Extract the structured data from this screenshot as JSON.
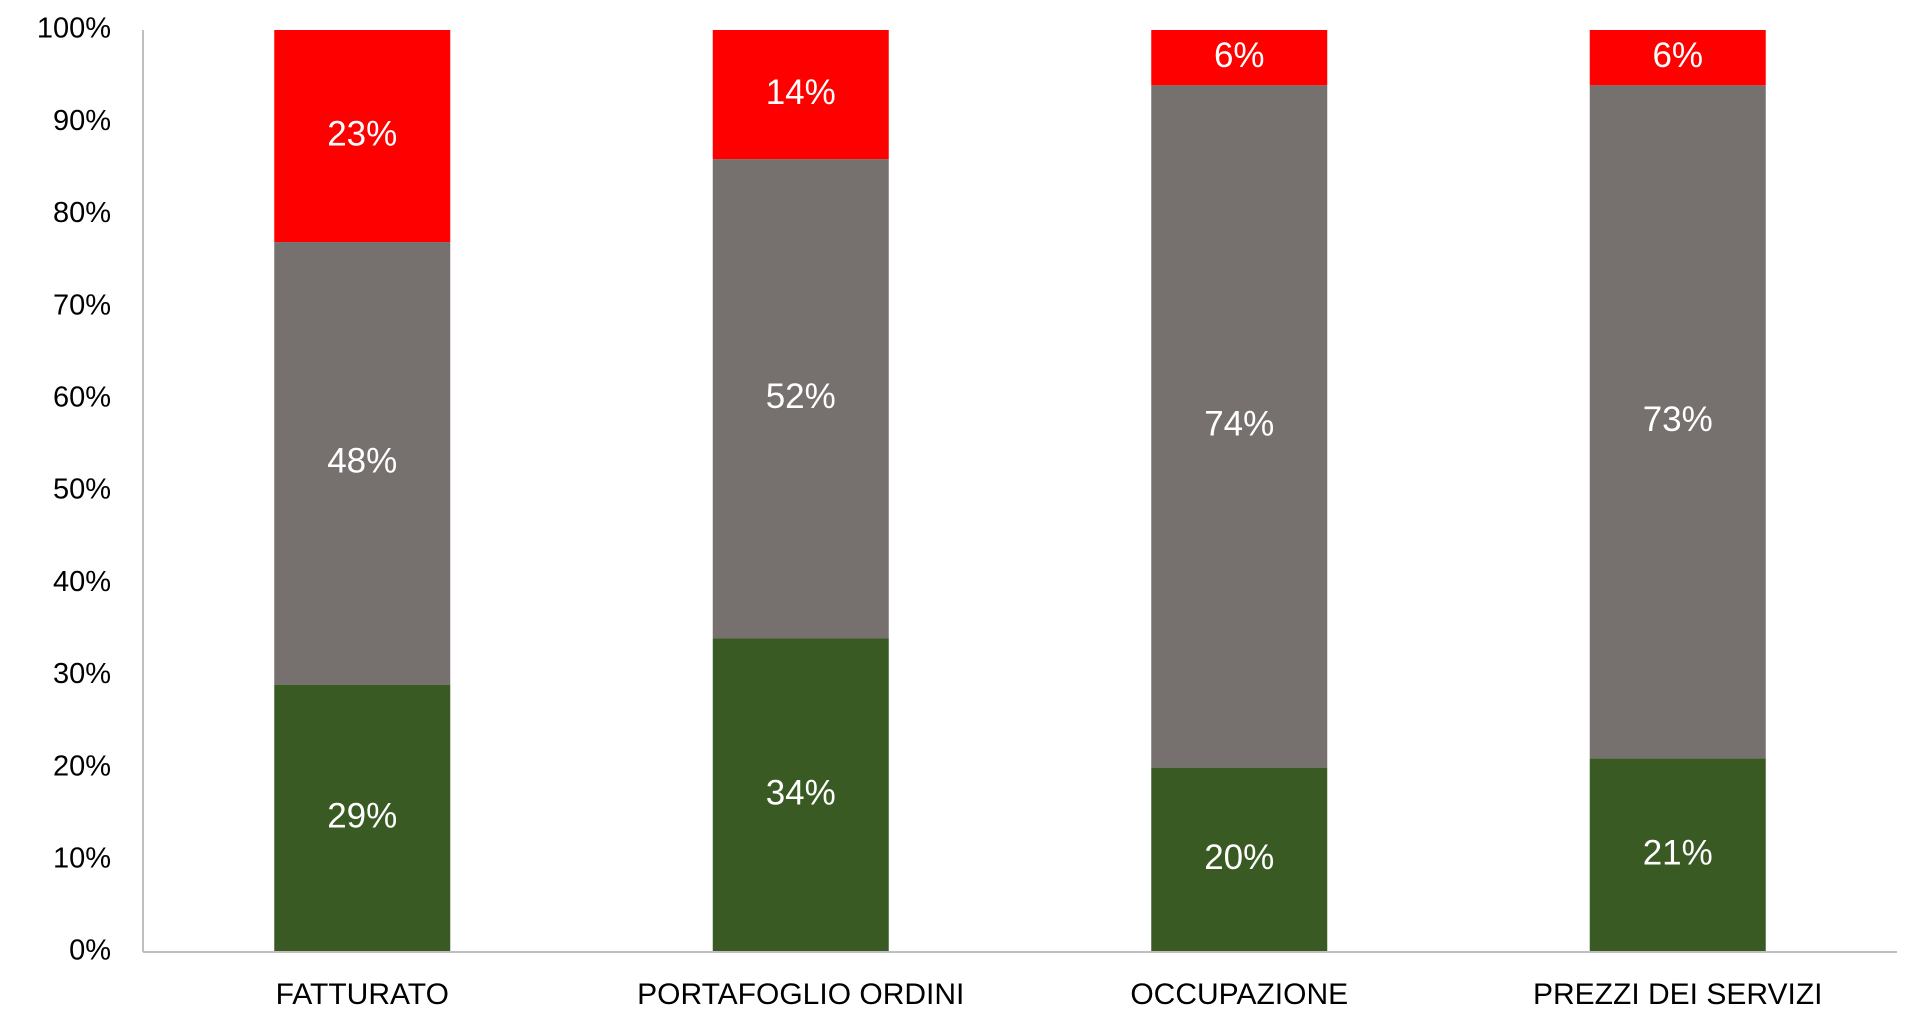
{
  "chart_data": {
    "type": "stacked_bar",
    "categories": [
      "FATTURATO",
      "PORTAFOGLIO ORDINI",
      "OCCUPAZIONE",
      "PREZZI DEI SERVIZI"
    ],
    "series": [
      {
        "color": "#3a5a24",
        "values": [
          29,
          34,
          20,
          21
        ],
        "value_labels": [
          "29%",
          "34%",
          "20%",
          "21%"
        ]
      },
      {
        "color": "#76716f",
        "values": [
          48,
          52,
          74,
          73
        ],
        "value_labels": [
          "48%",
          "52%",
          "74%",
          "73%"
        ]
      },
      {
        "color": "#ff0000",
        "values": [
          23,
          14,
          6,
          6
        ],
        "value_labels": [
          "23%",
          "14%",
          "6%",
          "6%"
        ]
      }
    ],
    "ylim": [
      0,
      100
    ],
    "yticks": [
      {
        "value": 0,
        "label": "0%"
      },
      {
        "value": 10,
        "label": "10%"
      },
      {
        "value": 20,
        "label": "20%"
      },
      {
        "value": 30,
        "label": "30%"
      },
      {
        "value": 40,
        "label": "40%"
      },
      {
        "value": 50,
        "label": "50%"
      },
      {
        "value": 60,
        "label": "60%"
      },
      {
        "value": 70,
        "label": "70%"
      },
      {
        "value": 80,
        "label": "80%"
      },
      {
        "value": 90,
        "label": "90%"
      },
      {
        "value": 100,
        "label": "100%"
      }
    ],
    "grid": false
  }
}
